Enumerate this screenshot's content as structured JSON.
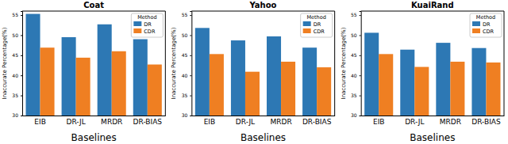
{
  "chart_data": [
    {
      "type": "bar",
      "title": "Coat",
      "categories": [
        "EIB",
        "DR-JL",
        "MRDR",
        "DR-BIAS"
      ],
      "series": [
        {
          "name": "DR",
          "color": "#2d78b4",
          "values": [
            55.3,
            49.5,
            52.7,
            49.0
          ]
        },
        {
          "name": "CDR",
          "color": "#ef7f22",
          "values": [
            46.9,
            44.4,
            46.0,
            42.7
          ]
        }
      ],
      "x_label": "Baselines",
      "y_label": "Inaccurate Percentage(%)",
      "ylim": [
        30,
        56
      ],
      "yticks": [
        30,
        35,
        40,
        45,
        50,
        55
      ],
      "legend": "upper right",
      "legend_title": "Method"
    },
    {
      "type": "bar",
      "title": "Yahoo",
      "categories": [
        "EIB",
        "DR-JL",
        "MRDR",
        "DR-BIAS"
      ],
      "series": [
        {
          "name": "DR",
          "color": "#2d78b4",
          "values": [
            51.8,
            48.7,
            49.7,
            46.9
          ]
        },
        {
          "name": "CDR",
          "color": "#ef7f22",
          "values": [
            45.3,
            40.9,
            43.4,
            42.0
          ]
        }
      ],
      "x_label": "Baselines",
      "y_label": "Inaccurate Percentage(%)",
      "ylim": [
        30,
        56
      ],
      "yticks": [
        30,
        35,
        40,
        45,
        50,
        55
      ],
      "legend": "upper right",
      "legend_title": "Method"
    },
    {
      "type": "bar",
      "title": "KuaiRand",
      "categories": [
        "EIB",
        "DR-JL",
        "MRDR",
        "DR-BIAS"
      ],
      "series": [
        {
          "name": "DR",
          "color": "#2d78b4",
          "values": [
            50.6,
            46.4,
            48.1,
            46.8
          ]
        },
        {
          "name": "CDR",
          "color": "#ef7f22",
          "values": [
            45.3,
            42.1,
            43.4,
            43.2
          ]
        }
      ],
      "x_label": "Baselines",
      "y_label": "Inaccurate Percentage(%)",
      "ylim": [
        30,
        56
      ],
      "yticks": [
        30,
        35,
        40,
        45,
        50,
        55
      ],
      "legend": "upper right",
      "legend_title": "Method"
    }
  ]
}
